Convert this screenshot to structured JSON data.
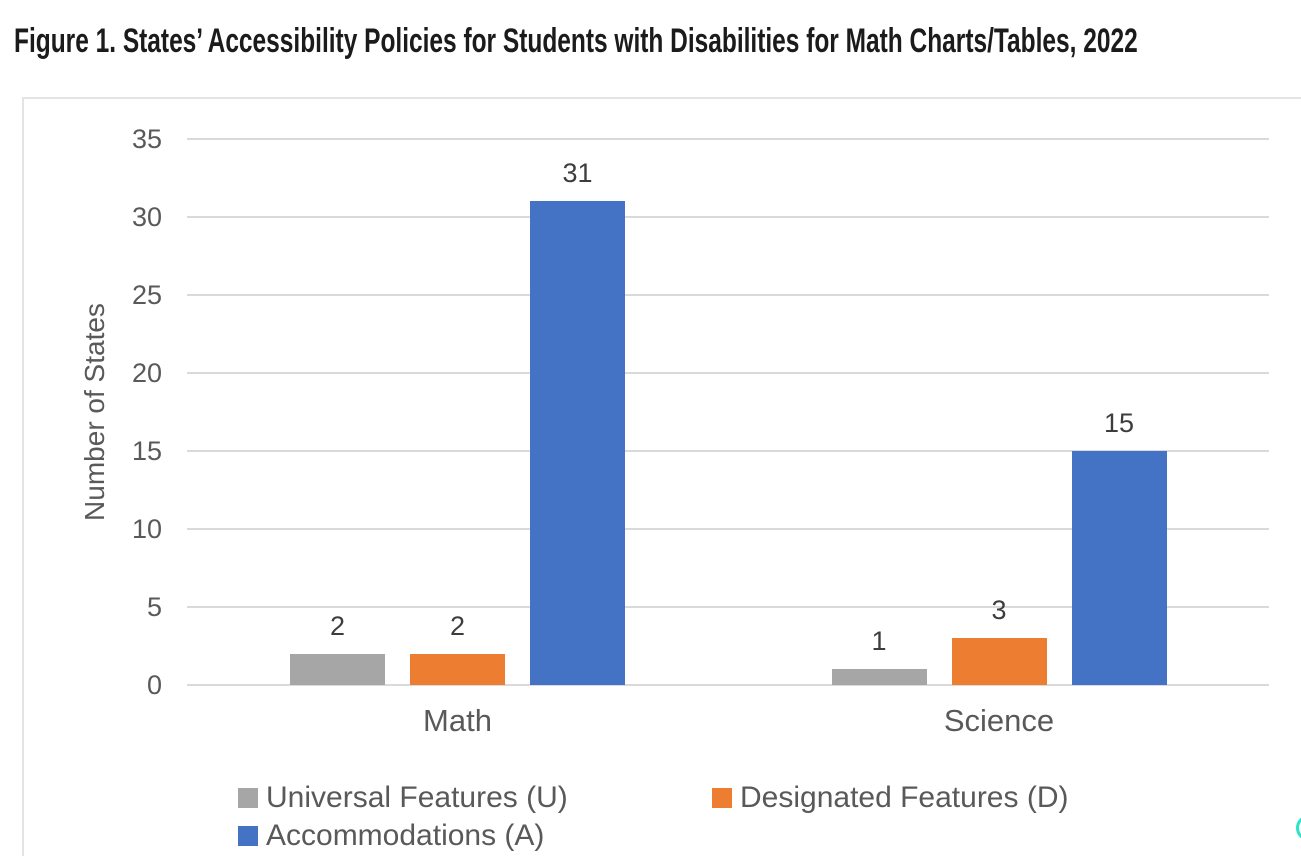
{
  "figure": {
    "title": "Figure 1. States’ Accessibility Policies for Students with Disabilities for Math Charts/Tables, 2022"
  },
  "chart_data": {
    "type": "bar",
    "categories": [
      "Math",
      "Science"
    ],
    "series": [
      {
        "name": "Universal Features (U)",
        "color": "#A6A6A6",
        "values": [
          2,
          1
        ]
      },
      {
        "name": "Designated Features (D)",
        "color": "#ED7D31",
        "values": [
          2,
          3
        ]
      },
      {
        "name": "Accommodations (A)",
        "color": "#4472C4",
        "values": [
          31,
          15
        ]
      }
    ],
    "xlabel": "",
    "ylabel": "Number of States",
    "ylim": [
      0,
      35
    ],
    "yticks": [
      0,
      5,
      10,
      15,
      20,
      25,
      30,
      35
    ],
    "grid": true,
    "data_labels": true,
    "legend_position": "bottom"
  },
  "colors": {
    "grid": "#dadada",
    "axis_text": "#595959",
    "data_label_text": "#3d3d3d",
    "title_text": "#1b1b1b",
    "panel_border": "#e4e4e4",
    "floating_accent": "#2ee3c9"
  }
}
